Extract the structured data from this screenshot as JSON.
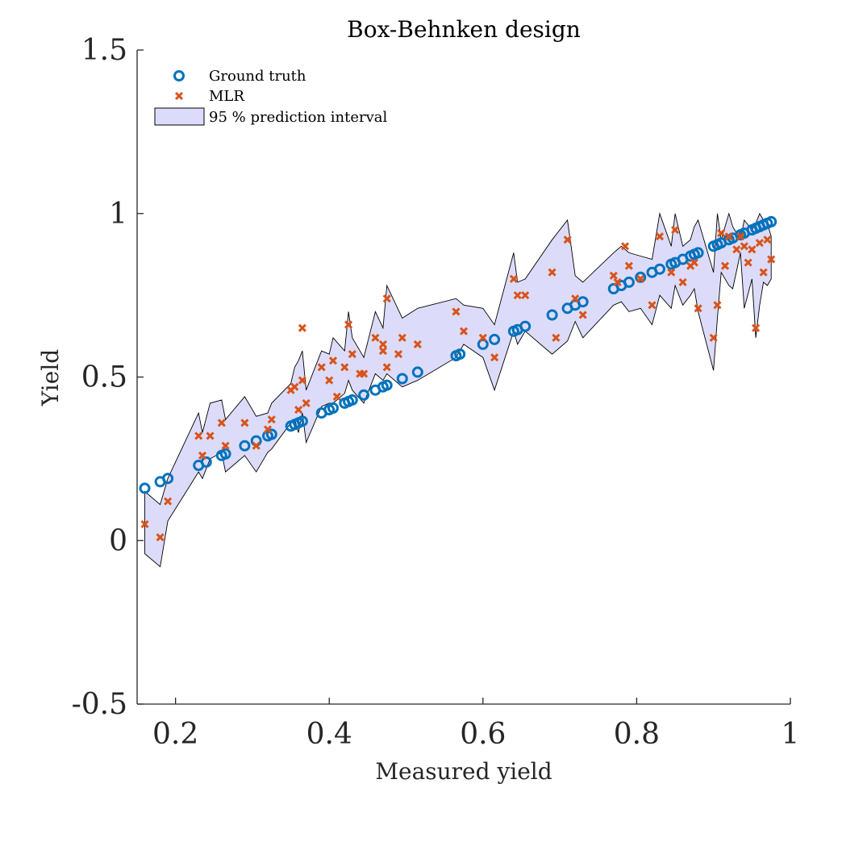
{
  "chart_data": {
    "type": "scatter",
    "title": "Box-Behnken design",
    "xlabel": "Measured yield",
    "ylabel": "Yield",
    "xlim": [
      0.15,
      1.0
    ],
    "ylim": [
      -0.5,
      1.5
    ],
    "xticks": [
      0.2,
      0.4,
      0.6,
      0.8,
      1
    ],
    "xtick_labels": [
      "0.2",
      "0.4",
      "0.6",
      "0.8",
      "1"
    ],
    "yticks": [
      -0.5,
      0,
      0.5,
      1,
      1.5
    ],
    "ytick_labels": [
      "-0.5",
      "0",
      "0.5",
      "1",
      "1.5"
    ],
    "grid": false,
    "legend_position": "top-left",
    "colors": {
      "ground_truth": "#0072BD",
      "mlr": "#D95319",
      "interval_fill": "#DCDCFA",
      "interval_edge": "#000000"
    },
    "series": [
      {
        "name": "Ground truth",
        "marker": "circle",
        "x": [
          0.16,
          0.18,
          0.19,
          0.23,
          0.24,
          0.26,
          0.265,
          0.29,
          0.305,
          0.32,
          0.325,
          0.35,
          0.355,
          0.36,
          0.365,
          0.39,
          0.4,
          0.405,
          0.42,
          0.425,
          0.43,
          0.445,
          0.46,
          0.47,
          0.475,
          0.495,
          0.515,
          0.565,
          0.57,
          0.6,
          0.615,
          0.64,
          0.645,
          0.655,
          0.69,
          0.71,
          0.72,
          0.73,
          0.77,
          0.78,
          0.79,
          0.805,
          0.82,
          0.83,
          0.845,
          0.85,
          0.86,
          0.87,
          0.875,
          0.88,
          0.9,
          0.905,
          0.91,
          0.92,
          0.925,
          0.935,
          0.94,
          0.95,
          0.955,
          0.96,
          0.965,
          0.97,
          0.975
        ],
        "y": [
          0.16,
          0.18,
          0.19,
          0.23,
          0.24,
          0.26,
          0.265,
          0.29,
          0.305,
          0.32,
          0.325,
          0.35,
          0.355,
          0.36,
          0.365,
          0.39,
          0.4,
          0.405,
          0.42,
          0.425,
          0.43,
          0.445,
          0.46,
          0.47,
          0.475,
          0.495,
          0.515,
          0.565,
          0.57,
          0.6,
          0.615,
          0.64,
          0.645,
          0.655,
          0.69,
          0.71,
          0.72,
          0.73,
          0.77,
          0.78,
          0.79,
          0.805,
          0.82,
          0.83,
          0.845,
          0.85,
          0.86,
          0.87,
          0.875,
          0.88,
          0.9,
          0.905,
          0.91,
          0.92,
          0.925,
          0.935,
          0.94,
          0.95,
          0.955,
          0.96,
          0.965,
          0.97,
          0.975
        ]
      },
      {
        "name": "MLR",
        "marker": "x",
        "x": [
          0.16,
          0.18,
          0.19,
          0.23,
          0.235,
          0.245,
          0.26,
          0.265,
          0.29,
          0.305,
          0.32,
          0.325,
          0.35,
          0.355,
          0.36,
          0.365,
          0.365,
          0.37,
          0.39,
          0.4,
          0.405,
          0.41,
          0.42,
          0.425,
          0.43,
          0.44,
          0.445,
          0.46,
          0.47,
          0.47,
          0.475,
          0.475,
          0.49,
          0.495,
          0.515,
          0.565,
          0.575,
          0.6,
          0.615,
          0.64,
          0.645,
          0.655,
          0.69,
          0.695,
          0.71,
          0.72,
          0.73,
          0.77,
          0.775,
          0.785,
          0.79,
          0.805,
          0.82,
          0.83,
          0.845,
          0.85,
          0.86,
          0.87,
          0.875,
          0.88,
          0.9,
          0.905,
          0.91,
          0.915,
          0.92,
          0.93,
          0.935,
          0.94,
          0.945,
          0.95,
          0.955,
          0.96,
          0.965,
          0.97,
          0.975
        ],
        "y": [
          0.05,
          0.01,
          0.12,
          0.32,
          0.26,
          0.32,
          0.36,
          0.29,
          0.36,
          0.29,
          0.34,
          0.37,
          0.46,
          0.47,
          0.4,
          0.49,
          0.65,
          0.42,
          0.53,
          0.49,
          0.55,
          0.44,
          0.53,
          0.66,
          0.57,
          0.51,
          0.51,
          0.62,
          0.6,
          0.58,
          0.53,
          0.74,
          0.57,
          0.62,
          0.6,
          0.7,
          0.64,
          0.62,
          0.56,
          0.8,
          0.75,
          0.75,
          0.82,
          0.62,
          0.92,
          0.74,
          0.69,
          0.81,
          0.79,
          0.9,
          0.84,
          0.8,
          0.72,
          0.93,
          0.82,
          0.95,
          0.79,
          0.84,
          0.85,
          0.71,
          0.62,
          0.72,
          0.94,
          0.84,
          0.93,
          0.89,
          0.93,
          0.9,
          0.85,
          0.89,
          0.65,
          0.91,
          0.82,
          0.92,
          0.86
        ]
      }
    ],
    "interval": {
      "name": "95 % prediction interval",
      "x": [
        0.16,
        0.18,
        0.19,
        0.23,
        0.235,
        0.245,
        0.26,
        0.265,
        0.29,
        0.305,
        0.32,
        0.325,
        0.35,
        0.355,
        0.36,
        0.365,
        0.37,
        0.39,
        0.4,
        0.405,
        0.42,
        0.425,
        0.43,
        0.445,
        0.46,
        0.47,
        0.475,
        0.495,
        0.515,
        0.565,
        0.575,
        0.6,
        0.615,
        0.64,
        0.645,
        0.655,
        0.69,
        0.71,
        0.72,
        0.73,
        0.77,
        0.78,
        0.79,
        0.805,
        0.82,
        0.83,
        0.845,
        0.85,
        0.86,
        0.87,
        0.875,
        0.88,
        0.9,
        0.905,
        0.91,
        0.92,
        0.925,
        0.935,
        0.94,
        0.95,
        0.955,
        0.96,
        0.965,
        0.97,
        0.975
      ],
      "upper": [
        0.15,
        0.11,
        0.19,
        0.39,
        0.33,
        0.42,
        0.43,
        0.37,
        0.44,
        0.38,
        0.39,
        0.42,
        0.48,
        0.53,
        0.55,
        0.58,
        0.46,
        0.58,
        0.57,
        0.62,
        0.58,
        0.7,
        0.62,
        0.56,
        0.7,
        0.65,
        0.78,
        0.68,
        0.71,
        0.74,
        0.72,
        0.71,
        0.66,
        0.88,
        0.79,
        0.8,
        0.92,
        0.98,
        0.81,
        0.79,
        0.88,
        0.9,
        0.88,
        0.87,
        0.86,
        1.0,
        0.9,
        1.0,
        0.9,
        0.92,
        0.96,
        0.98,
        0.82,
        1.0,
        0.92,
        1.0,
        0.96,
        0.92,
        0.98,
        0.95,
        0.97,
        1.0,
        0.98,
        0.97,
        0.93
      ],
      "lower": [
        -0.04,
        -0.08,
        0.06,
        0.21,
        0.19,
        0.25,
        0.27,
        0.21,
        0.26,
        0.21,
        0.27,
        0.28,
        0.36,
        0.37,
        0.33,
        0.39,
        0.3,
        0.41,
        0.42,
        0.42,
        0.45,
        0.49,
        0.46,
        0.42,
        0.51,
        0.49,
        0.51,
        0.47,
        0.49,
        0.56,
        0.6,
        0.56,
        0.46,
        0.64,
        0.6,
        0.64,
        0.57,
        0.61,
        0.67,
        0.62,
        0.72,
        0.73,
        0.7,
        0.71,
        0.66,
        0.75,
        0.71,
        0.78,
        0.72,
        0.75,
        0.77,
        0.7,
        0.52,
        0.68,
        0.82,
        0.78,
        0.77,
        0.88,
        0.71,
        0.8,
        0.62,
        0.72,
        0.79,
        0.78,
        0.8
      ]
    }
  }
}
